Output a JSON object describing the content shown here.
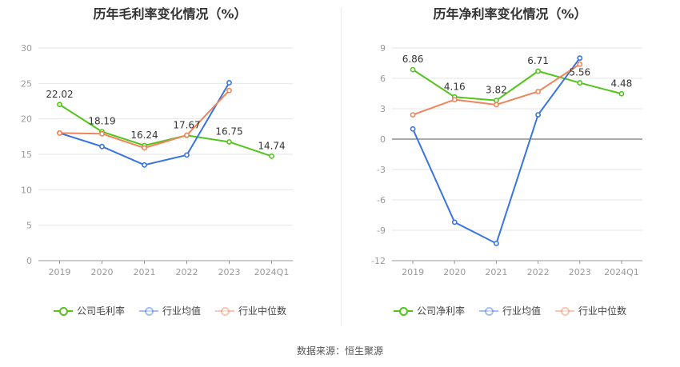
{
  "source": "数据来源：恒生聚源",
  "colors": {
    "company": "#52c41a",
    "avg": "#3a74e0",
    "median": "#f0845a",
    "grid": "#e6e6e6",
    "axis": "#999999"
  },
  "chart_data": [
    {
      "type": "line",
      "title": "历年毛利率变化情况（%）",
      "categories": [
        "2019",
        "2020",
        "2021",
        "2022",
        "2023",
        "2024Q1"
      ],
      "ylim": [
        0,
        30
      ],
      "yticks": [
        0,
        5,
        10,
        15,
        20,
        25,
        30
      ],
      "grid": true,
      "legend_position": "bottom",
      "series": [
        {
          "name": "公司毛利率",
          "key": "company",
          "values": [
            22.02,
            18.19,
            16.24,
            17.67,
            16.75,
            14.74
          ],
          "labels": [
            "22.02",
            "18.19",
            "16.24",
            "17.67",
            "16.75",
            "14.74"
          ]
        },
        {
          "name": "行业均值",
          "key": "avg",
          "values": [
            18.0,
            16.1,
            13.5,
            14.9,
            25.1,
            null
          ]
        },
        {
          "name": "行业中位数",
          "key": "median",
          "values": [
            18.0,
            17.9,
            15.9,
            17.7,
            24.0,
            null
          ]
        }
      ]
    },
    {
      "type": "line",
      "title": "历年净利率变化情况（%）",
      "categories": [
        "2019",
        "2020",
        "2021",
        "2022",
        "2023",
        "2024Q1"
      ],
      "ylim": [
        -12,
        9
      ],
      "yticks": [
        -12,
        -9,
        -6,
        -3,
        0,
        3,
        6,
        9
      ],
      "grid": true,
      "legend_position": "bottom",
      "series": [
        {
          "name": "公司净利率",
          "key": "company",
          "values": [
            6.86,
            4.16,
            3.82,
            6.71,
            5.56,
            4.48
          ],
          "labels": [
            "6.86",
            "4.16",
            "3.82",
            "6.71",
            "5.56",
            "4.48"
          ]
        },
        {
          "name": "行业均值",
          "key": "avg",
          "values": [
            1.0,
            -8.2,
            -10.3,
            2.4,
            8.0,
            null
          ]
        },
        {
          "name": "行业中位数",
          "key": "median",
          "values": [
            2.4,
            3.9,
            3.4,
            4.7,
            7.4,
            null
          ]
        }
      ]
    }
  ]
}
